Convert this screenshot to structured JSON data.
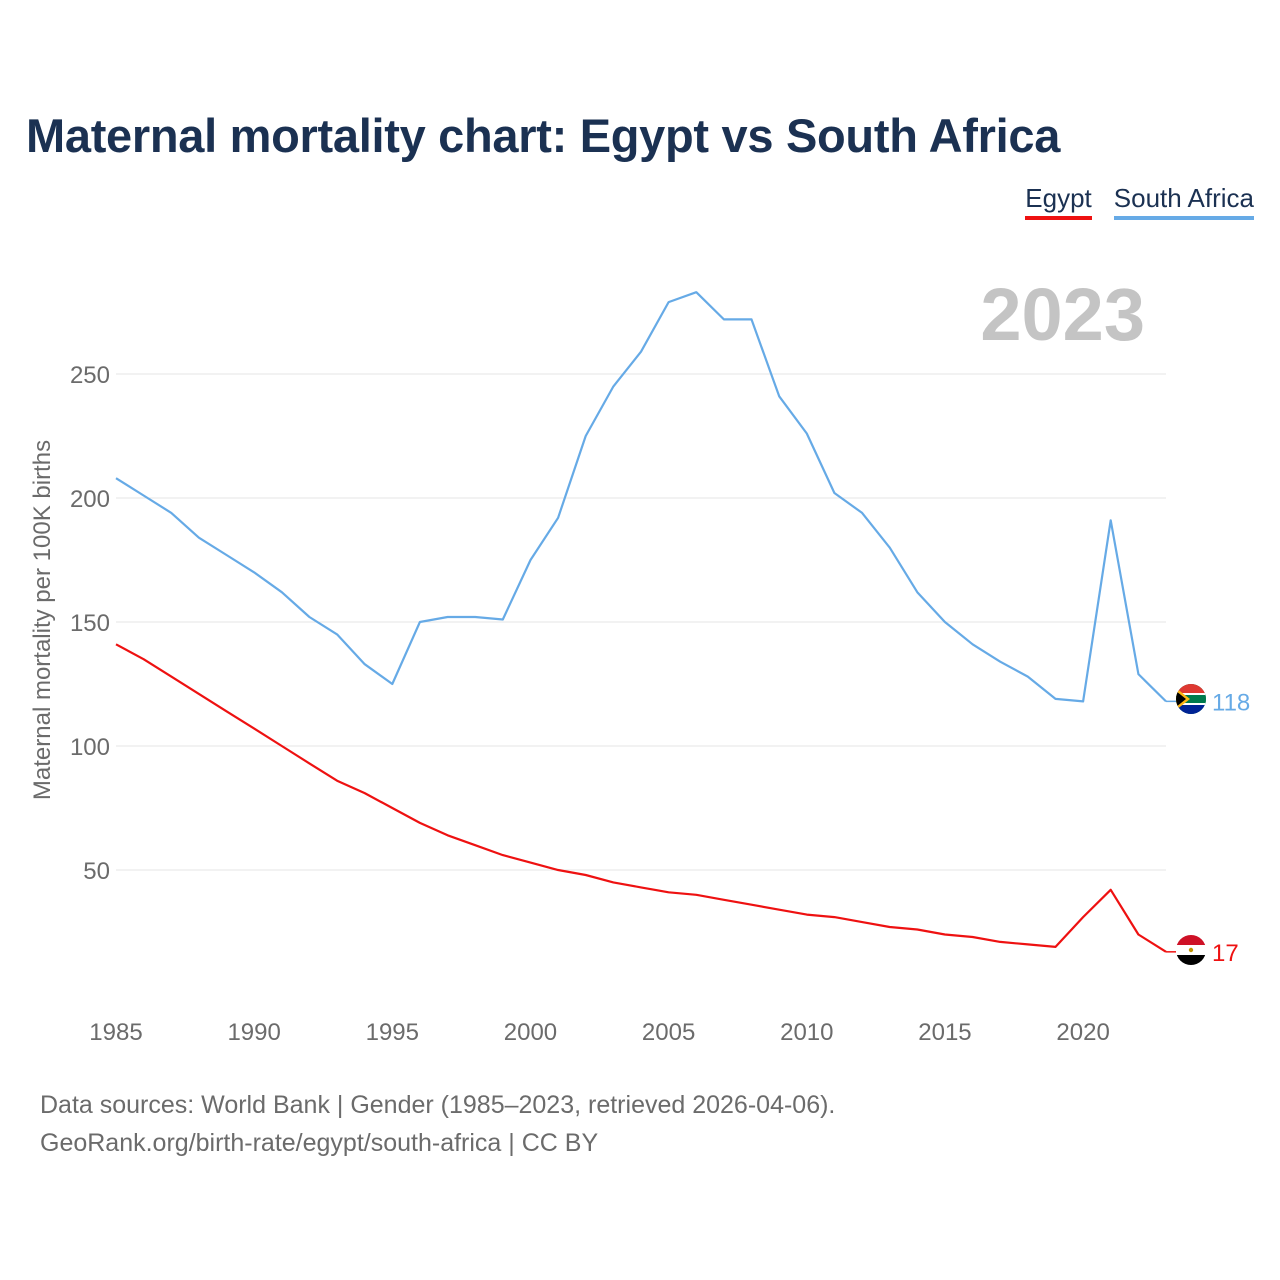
{
  "title": "Maternal mortality chart: Egypt vs South Africa",
  "legend": [
    {
      "name": "Egypt",
      "color": "#ee1111"
    },
    {
      "name": "South Africa",
      "color": "#66aae6"
    }
  ],
  "year_label": "2023",
  "source": {
    "line1": "Data sources: World Bank | Gender (1985–2023, retrieved 2026-04-06).",
    "line2": "GeoRank.org/birth-rate/egypt/south-africa | CC BY"
  },
  "chart_data": {
    "type": "line",
    "title": "Maternal mortality chart: Egypt vs South Africa",
    "xlabel": "",
    "ylabel": "Maternal mortality per 100K births",
    "x": [
      1985,
      1986,
      1987,
      1988,
      1989,
      1990,
      1991,
      1992,
      1993,
      1994,
      1995,
      1996,
      1997,
      1998,
      1999,
      2000,
      2001,
      2002,
      2003,
      2004,
      2005,
      2006,
      2007,
      2008,
      2009,
      2010,
      2011,
      2012,
      2013,
      2014,
      2015,
      2016,
      2017,
      2018,
      2019,
      2020,
      2021,
      2022,
      2023
    ],
    "xlim": [
      1985,
      2023
    ],
    "ylim": [
      0,
      285
    ],
    "xticks": [
      1985,
      1990,
      1995,
      2000,
      2005,
      2010,
      2015,
      2020
    ],
    "yticks": [
      50,
      100,
      150,
      200,
      250
    ],
    "grid": true,
    "series": [
      {
        "name": "Egypt",
        "color": "#ee1111",
        "end_label": "17",
        "values": [
          141,
          135,
          128,
          121,
          114,
          107,
          100,
          93,
          86,
          81,
          75,
          69,
          64,
          60,
          56,
          53,
          50,
          48,
          45,
          43,
          41,
          40,
          38,
          36,
          34,
          32,
          31,
          29,
          27,
          26,
          24,
          23,
          21,
          20,
          19,
          31,
          42,
          24,
          17
        ]
      },
      {
        "name": "South Africa",
        "color": "#66aae6",
        "end_label": "118",
        "values": [
          208,
          201,
          194,
          184,
          177,
          170,
          162,
          152,
          145,
          133,
          125,
          150,
          152,
          152,
          151,
          175,
          192,
          225,
          245,
          259,
          279,
          283,
          272,
          272,
          241,
          226,
          202,
          194,
          180,
          162,
          150,
          141,
          134,
          128,
          119,
          118,
          191,
          129,
          118
        ]
      }
    ]
  }
}
